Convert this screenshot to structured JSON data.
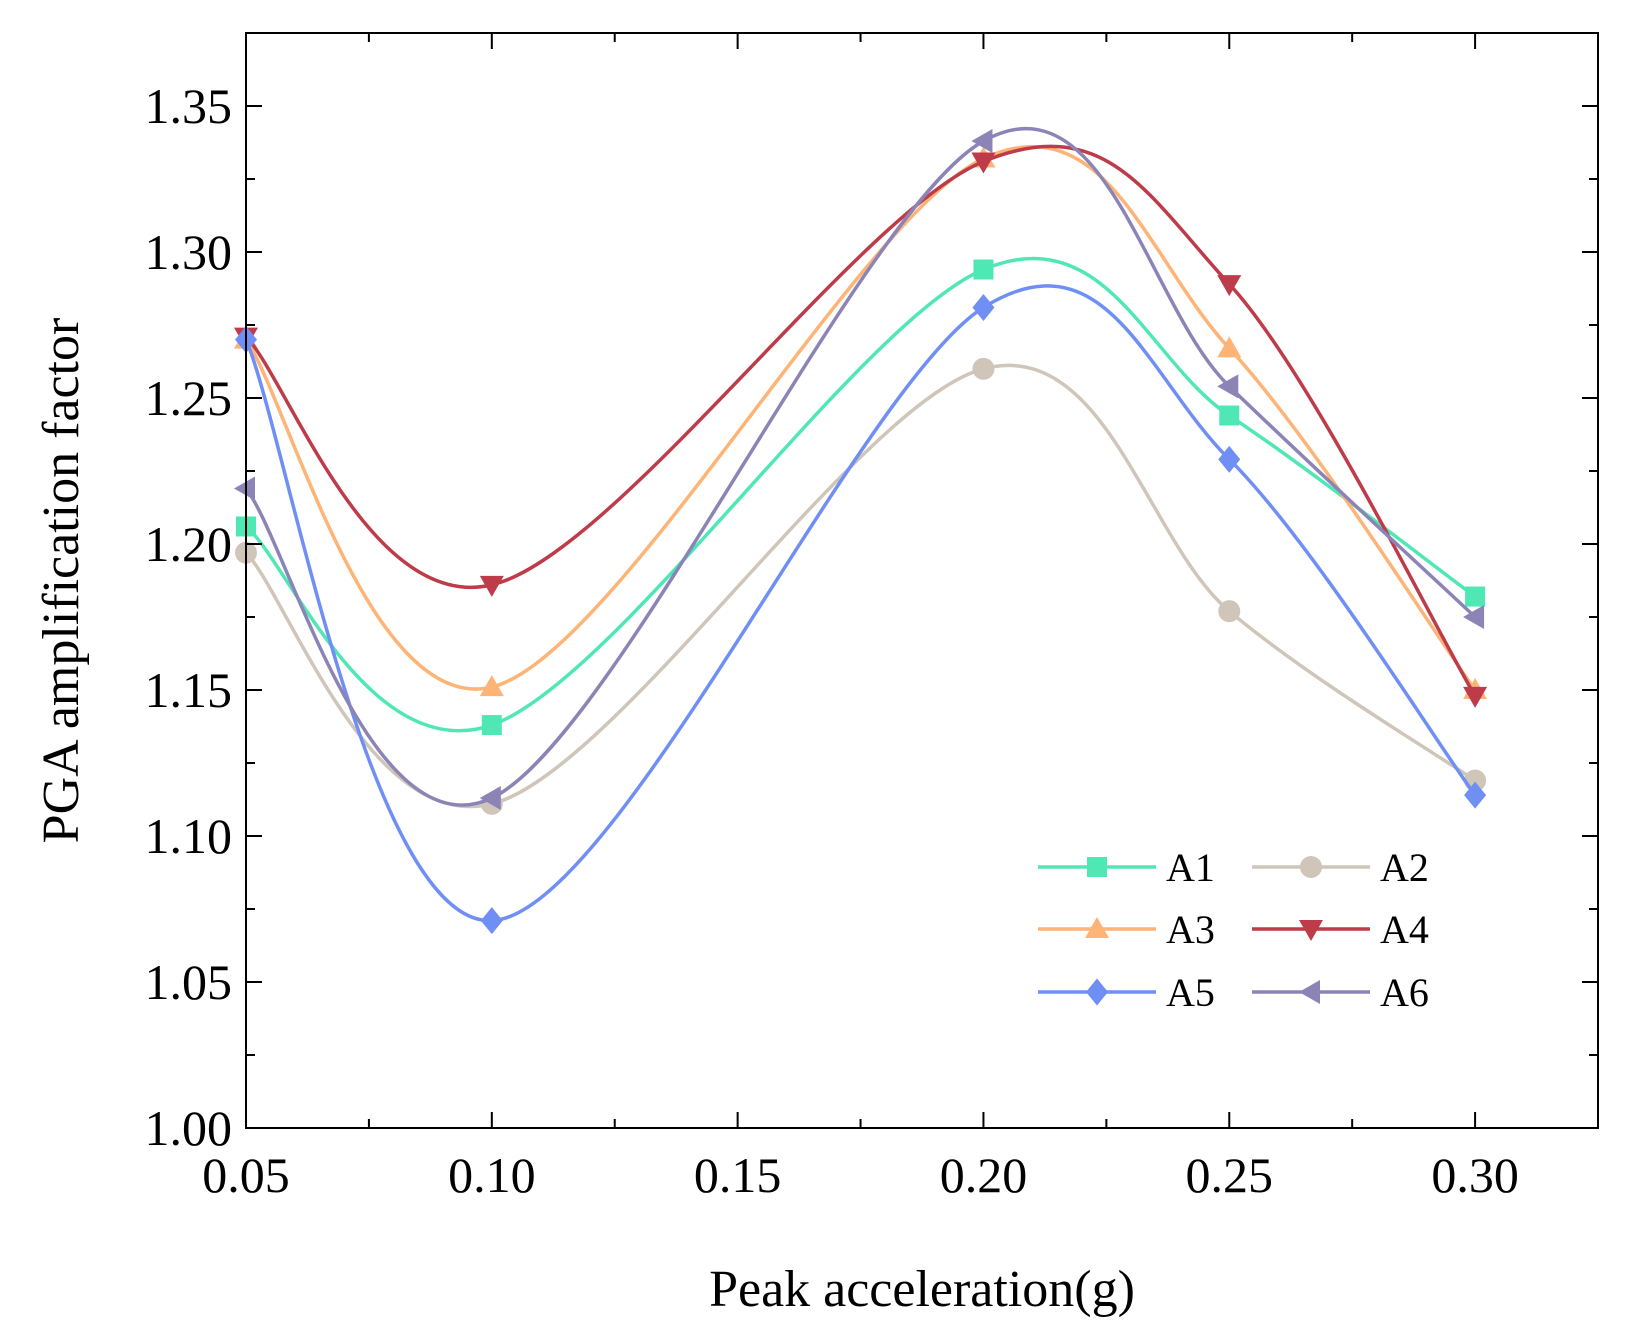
{
  "chart_data": {
    "type": "line",
    "title": "",
    "xlabel": "Peak acceleration(g)",
    "ylabel": "PGA amplification factor",
    "x": [
      0.05,
      0.1,
      0.2,
      0.25,
      0.3
    ],
    "xlim": [
      0.05,
      0.325
    ],
    "ylim": [
      1.0,
      1.375
    ],
    "xticks": [
      0.05,
      0.1,
      0.15,
      0.2,
      0.25,
      0.3
    ],
    "xtick_labels": [
      "0.05",
      "0.10",
      "0.15",
      "0.20",
      "0.25",
      "0.30"
    ],
    "yticks": [
      1.0,
      1.05,
      1.1,
      1.15,
      1.2,
      1.25,
      1.3,
      1.35
    ],
    "ytick_labels": [
      "1.00",
      "1.05",
      "1.10",
      "1.15",
      "1.20",
      "1.25",
      "1.30",
      "1.35"
    ],
    "grid": false,
    "legend_position": "bottom-right",
    "legend_columns": 2,
    "series": [
      {
        "name": "A1",
        "color": "#4fe8b4",
        "marker": "square",
        "values": [
          1.206,
          1.138,
          1.294,
          1.244,
          1.182
        ]
      },
      {
        "name": "A2",
        "color": "#cfc6b9",
        "marker": "circle",
        "values": [
          1.197,
          1.111,
          1.26,
          1.177,
          1.119
        ]
      },
      {
        "name": "A3",
        "color": "#fdb476",
        "marker": "triangle-up",
        "values": [
          1.27,
          1.151,
          1.332,
          1.267,
          1.15
        ]
      },
      {
        "name": "A4",
        "color": "#be3b49",
        "marker": "triangle-down",
        "values": [
          1.271,
          1.186,
          1.331,
          1.289,
          1.148
        ]
      },
      {
        "name": "A5",
        "color": "#6f8ff5",
        "marker": "diamond",
        "values": [
          1.27,
          1.071,
          1.281,
          1.229,
          1.114
        ]
      },
      {
        "name": "A6",
        "color": "#8c84b6",
        "marker": "triangle-left",
        "values": [
          1.219,
          1.113,
          1.338,
          1.254,
          1.175
        ]
      }
    ]
  }
}
